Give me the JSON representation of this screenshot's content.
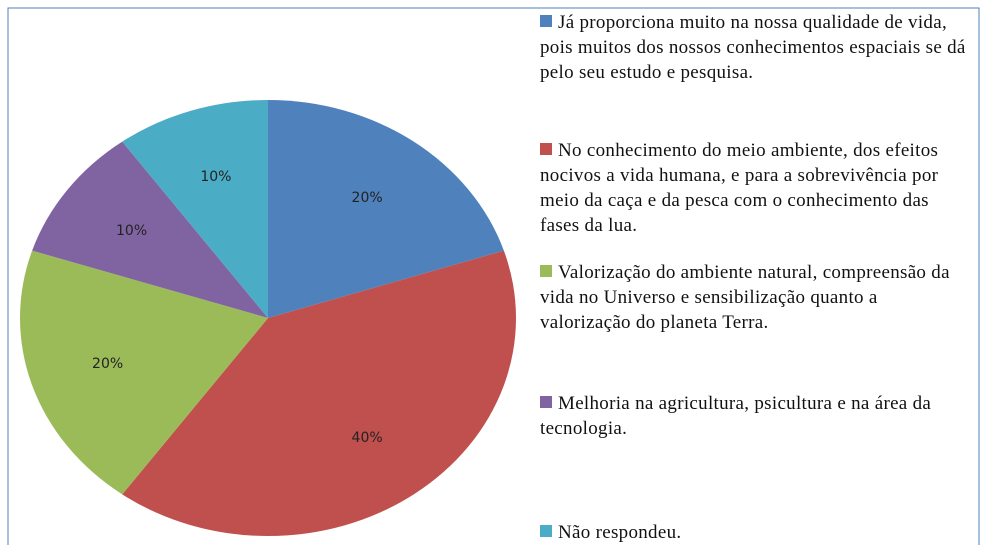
{
  "chart_data": {
    "type": "pie",
    "categories": [
      "Já proporciona muito na nossa qualidade de vida, pois muitos dos nossos conhecimentos espaciais se dá pelo seu estudo e pesquisa.",
      "No conhecimento do meio ambiente, dos efeitos nocivos a vida humana,  e para a sobrevivência por meio da caça e da pesca com o conhecimento das fases da lua.",
      "Valorização do ambiente natural, compreensão da vida no Universo e sensibilização quanto a valorização do planeta Terra.",
      "Melhoria na agricultura, psicultura e na área da tecnologia.",
      "Não respondeu."
    ],
    "values": [
      20,
      40,
      20,
      10,
      10
    ],
    "value_labels": [
      "20%",
      "40%",
      "20%",
      "10%",
      "10%"
    ],
    "colors": [
      "#4f81bd",
      "#c0504d",
      "#9bbb59",
      "#8064a2",
      "#4bacc6"
    ]
  }
}
